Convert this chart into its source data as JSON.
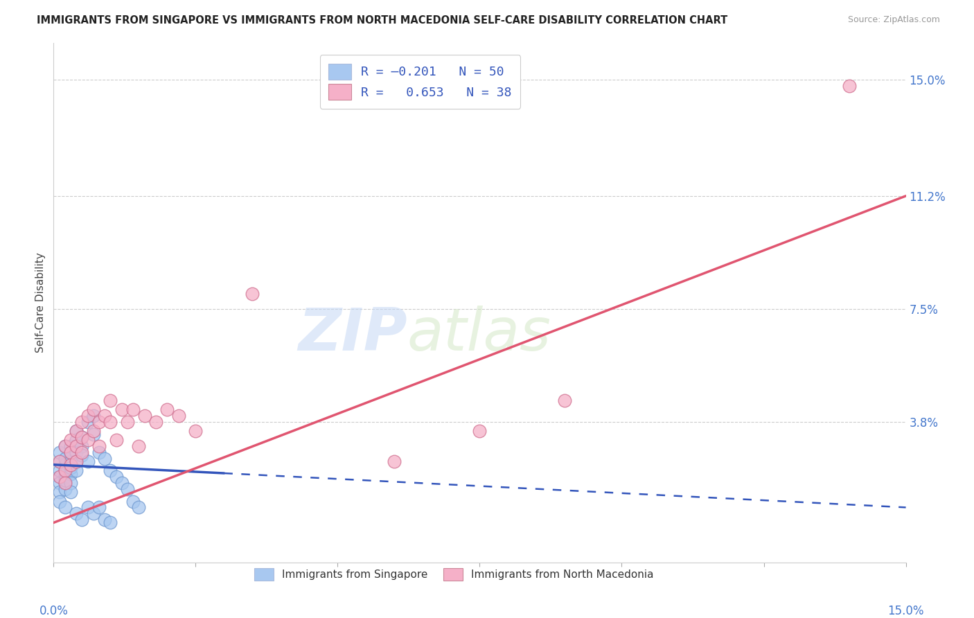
{
  "title": "IMMIGRANTS FROM SINGAPORE VS IMMIGRANTS FROM NORTH MACEDONIA SELF-CARE DISABILITY CORRELATION CHART",
  "source": "Source: ZipAtlas.com",
  "ylabel": "Self-Care Disability",
  "right_yticks": [
    0.0,
    0.038,
    0.075,
    0.112,
    0.15
  ],
  "right_yticklabels": [
    "",
    "3.8%",
    "7.5%",
    "11.2%",
    "15.0%"
  ],
  "xmin": 0.0,
  "xmax": 0.15,
  "ymin": -0.008,
  "ymax": 0.162,
  "singapore_color": "#a8c8f0",
  "singapore_edge": "#7099d0",
  "north_mac_color": "#f5b0c8",
  "north_mac_edge": "#d07090",
  "trend_singapore_color": "#3355bb",
  "trend_north_mac_color": "#e05570",
  "watermark_zip": "ZIP",
  "watermark_atlas": "atlas",
  "singapore_points_x": [
    0.001,
    0.001,
    0.001,
    0.001,
    0.001,
    0.001,
    0.002,
    0.002,
    0.002,
    0.002,
    0.002,
    0.002,
    0.002,
    0.002,
    0.003,
    0.003,
    0.003,
    0.003,
    0.003,
    0.003,
    0.004,
    0.004,
    0.004,
    0.004,
    0.004,
    0.005,
    0.005,
    0.005,
    0.006,
    0.006,
    0.007,
    0.007,
    0.008,
    0.009,
    0.01,
    0.011,
    0.012,
    0.013,
    0.014,
    0.015,
    0.001,
    0.002,
    0.003,
    0.004,
    0.005,
    0.006,
    0.007,
    0.008,
    0.009,
    0.01
  ],
  "singapore_points_y": [
    0.02,
    0.022,
    0.018,
    0.025,
    0.015,
    0.028,
    0.02,
    0.024,
    0.018,
    0.03,
    0.022,
    0.016,
    0.026,
    0.019,
    0.025,
    0.03,
    0.021,
    0.028,
    0.023,
    0.018,
    0.035,
    0.028,
    0.025,
    0.022,
    0.032,
    0.03,
    0.033,
    0.027,
    0.038,
    0.025,
    0.04,
    0.034,
    0.028,
    0.026,
    0.022,
    0.02,
    0.018,
    0.016,
    0.012,
    0.01,
    0.012,
    0.01,
    0.015,
    0.008,
    0.006,
    0.01,
    0.008,
    0.01,
    0.006,
    0.005
  ],
  "north_mac_points_x": [
    0.001,
    0.001,
    0.002,
    0.002,
    0.002,
    0.003,
    0.003,
    0.003,
    0.004,
    0.004,
    0.004,
    0.005,
    0.005,
    0.005,
    0.006,
    0.006,
    0.007,
    0.007,
    0.008,
    0.008,
    0.009,
    0.01,
    0.01,
    0.011,
    0.012,
    0.013,
    0.014,
    0.015,
    0.016,
    0.018,
    0.02,
    0.022,
    0.025,
    0.035,
    0.06,
    0.075,
    0.09,
    0.14
  ],
  "north_mac_points_y": [
    0.02,
    0.025,
    0.022,
    0.03,
    0.018,
    0.028,
    0.032,
    0.024,
    0.03,
    0.035,
    0.025,
    0.033,
    0.028,
    0.038,
    0.032,
    0.04,
    0.035,
    0.042,
    0.038,
    0.03,
    0.04,
    0.038,
    0.045,
    0.032,
    0.042,
    0.038,
    0.042,
    0.03,
    0.04,
    0.038,
    0.042,
    0.04,
    0.035,
    0.08,
    0.025,
    0.035,
    0.045,
    0.148
  ],
  "trend_sing_x0": 0.0,
  "trend_sing_y0": 0.024,
  "trend_sing_x1": 0.15,
  "trend_sing_y1": 0.01,
  "trend_sing_solid_end": 0.03,
  "trend_north_x0": 0.0,
  "trend_north_y0": 0.005,
  "trend_north_x1": 0.15,
  "trend_north_y1": 0.112
}
